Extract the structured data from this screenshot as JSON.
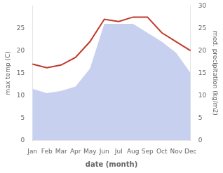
{
  "chart_data": {
    "type": "line",
    "categories": [
      "Jan",
      "Feb",
      "Mar",
      "Apr",
      "May",
      "Jun",
      "Jul",
      "Aug",
      "Sep",
      "Oct",
      "Nov",
      "Dec"
    ],
    "series": [
      {
        "type": "area",
        "axis": "y2",
        "color": "#c8d0f0",
        "values": [
          11.5,
          10.5,
          11.0,
          12.0,
          16.0,
          26.0,
          26.0,
          26.0,
          24.0,
          22.0,
          19.5,
          15.0
        ]
      },
      {
        "type": "line",
        "color": "#c0392b",
        "values": [
          17.0,
          16.2,
          16.8,
          18.5,
          22.0,
          27.0,
          26.5,
          27.5,
          27.5,
          24.0,
          22.0,
          20.0
        ]
      }
    ],
    "xlabel": "date (month)",
    "ylabel": "max temp (C)",
    "y2label": "med. precipitation (kg/m2)",
    "ylim": [
      0,
      30
    ],
    "yticks": [
      0,
      5,
      10,
      15,
      20,
      25
    ],
    "y2lim": [
      0,
      30
    ],
    "y2ticks": [
      0,
      5,
      10,
      15,
      20,
      25,
      30
    ],
    "grid": false
  }
}
